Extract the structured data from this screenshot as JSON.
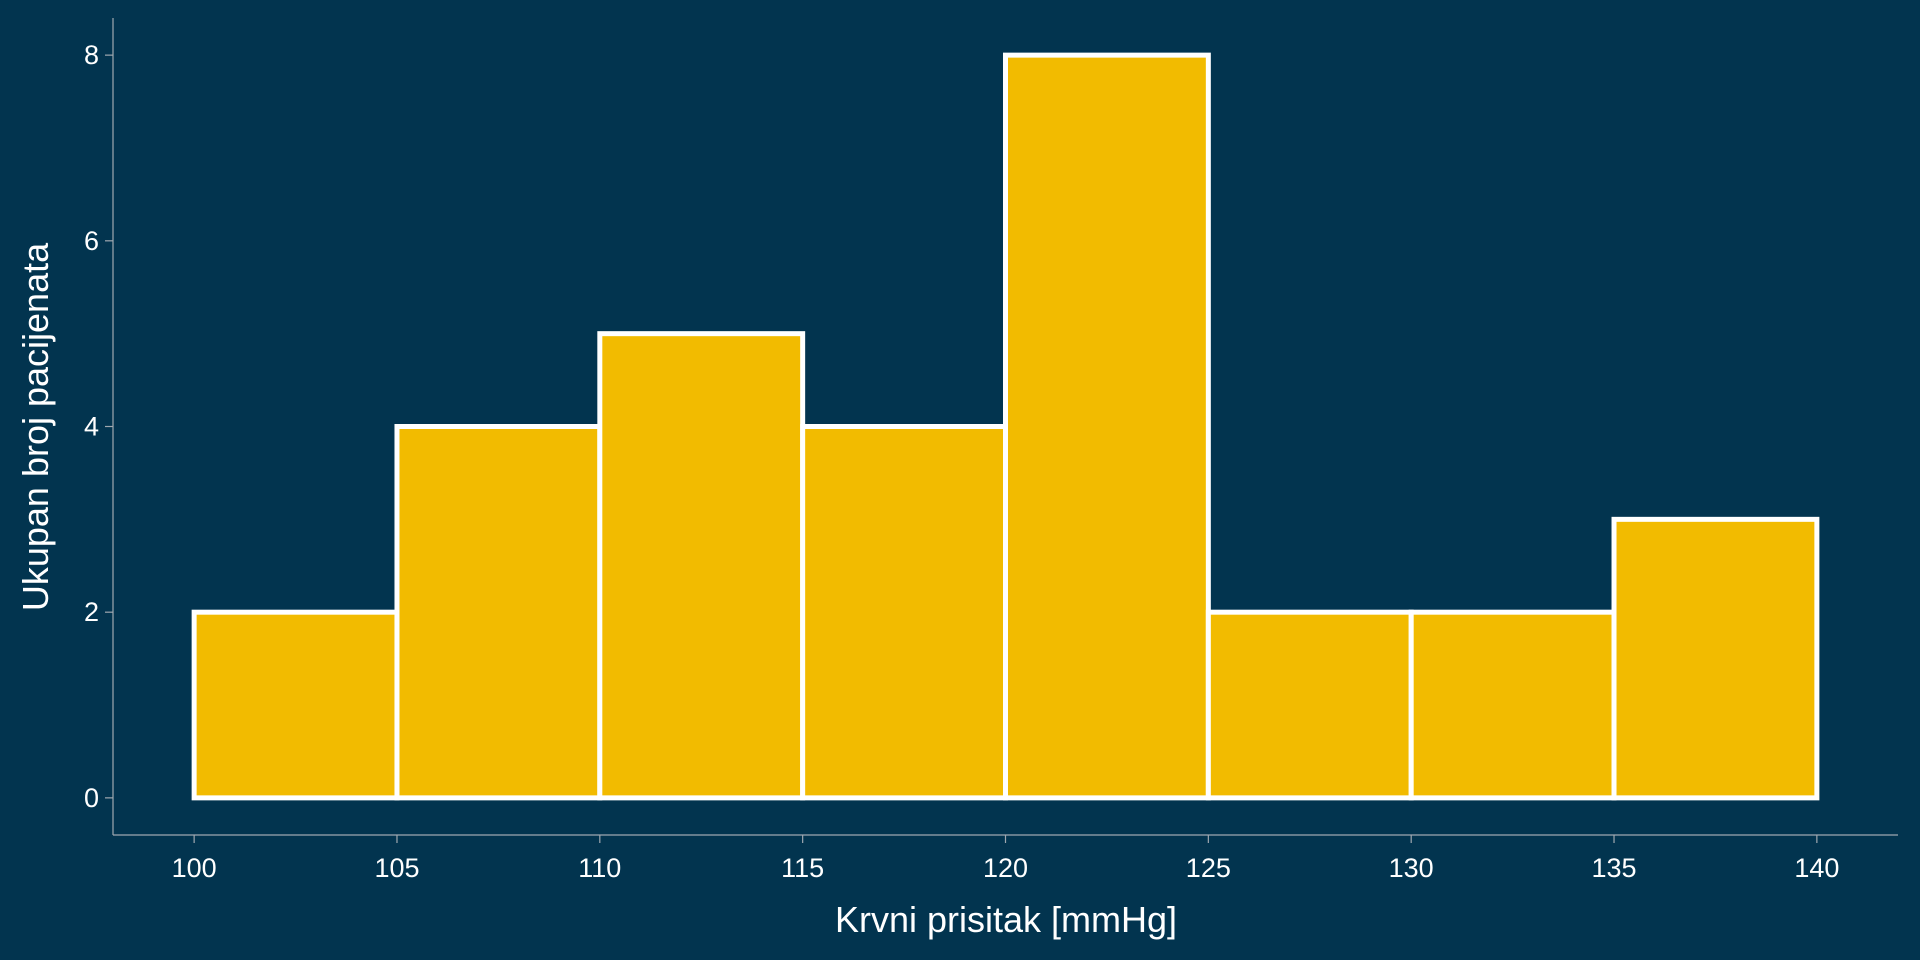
{
  "chart_data": {
    "type": "histogram",
    "xlabel": "Krvni prisitak [mmHg]",
    "ylabel": "Ukupan broj pacijenata",
    "bins": [
      100,
      105,
      110,
      115,
      120,
      125,
      130,
      135,
      140
    ],
    "values": [
      2,
      4,
      5,
      4,
      8,
      2,
      2,
      3
    ],
    "color": "#f2bb00",
    "edgecolor": "#ffffff",
    "xlim": [
      98,
      142
    ],
    "ylim": [
      -0.4,
      8.4
    ],
    "xticks": [
      100,
      105,
      110,
      115,
      120,
      125,
      130,
      135,
      140
    ],
    "yticks": [
      0,
      2,
      4,
      6,
      8
    ]
  }
}
